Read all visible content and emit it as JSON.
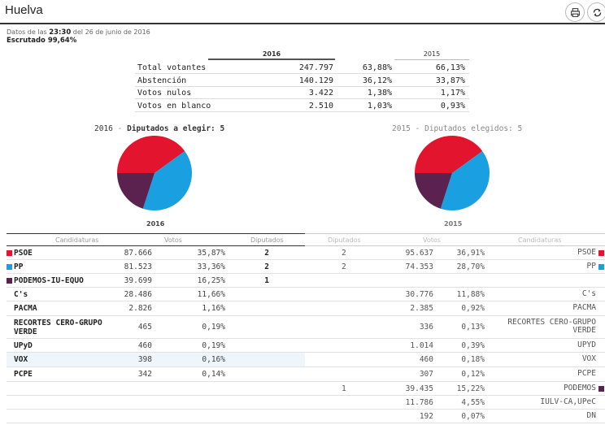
{
  "title": "Huelva",
  "icons": {
    "print": "print-icon",
    "refresh": "refresh-icon"
  },
  "meta": {
    "datos_prefix": "Datos de las",
    "time": "23:30",
    "date_text": "del 26 de junio de 2016",
    "escrutado": "Escrutado 99,64%"
  },
  "summary": {
    "year_current": "2016",
    "year_prev": "2015",
    "rows": [
      {
        "label": "Total votantes",
        "value": "247.797",
        "pct": "63,88%",
        "pct_prev": "66,13%"
      },
      {
        "label": "Abstención",
        "value": "140.129",
        "pct": "36,12%",
        "pct_prev": "33,87%"
      },
      {
        "label": "Votos nulos",
        "value": "3.422",
        "pct": "1,38%",
        "pct_prev": "1,17%"
      },
      {
        "label": "Votos en blanco",
        "value": "2.510",
        "pct": "1,03%",
        "pct_prev": "0,93%"
      }
    ]
  },
  "pies": {
    "left": {
      "year": "2016",
      "sep": "-",
      "label": "Diputados a elegir:",
      "count": "5"
    },
    "right": {
      "year": "2015",
      "sep": "-",
      "label": "Diputados elegidos:",
      "count": "5"
    }
  },
  "chart_data": [
    {
      "type": "pie",
      "title": "2016 - Diputados a elegir: 5",
      "categories": [
        "PSOE",
        "PP",
        "PODEMOS-IU-EQUO"
      ],
      "values": [
        2,
        2,
        1
      ],
      "colors": [
        "#e3142d",
        "#1aa0e0",
        "#5b2250"
      ]
    },
    {
      "type": "pie",
      "title": "2015 - Diputados elegidos: 5",
      "categories": [
        "PSOE",
        "PP",
        "PODEMOS"
      ],
      "values": [
        2,
        2,
        1
      ],
      "colors": [
        "#e3142d",
        "#1aa0e0",
        "#5b2250"
      ]
    }
  ],
  "results": {
    "headers_left": {
      "candidaturas": "Candidaturas",
      "votos": "Votos",
      "diputados": "Diputados"
    },
    "headers_right": {
      "diputados": "Diputados",
      "votos": "Votos",
      "candidaturas": "Candidaturas"
    },
    "rows": [
      {
        "left_name": "PSOE",
        "left_color": "#e3142d",
        "left_votes": "87.666",
        "left_pct": "35,87%",
        "left_seats": "2",
        "right_seats": "2",
        "right_votes": "95.637",
        "right_pct": "36,91%",
        "right_name": "PSOE",
        "right_color": "#e3142d",
        "h": 17
      },
      {
        "left_name": "PP",
        "left_color": "#1aa0e0",
        "left_votes": "81.523",
        "left_pct": "33,36%",
        "left_seats": "2",
        "right_seats": "2",
        "right_votes": "74.353",
        "right_pct": "28,70%",
        "right_name": "PP",
        "right_color": "#1aa0e0",
        "h": 17
      },
      {
        "left_name": "PODEMOS-IU-EQUO",
        "left_color": "#5b2250",
        "left_votes": "39.699",
        "left_pct": "16,25%",
        "left_seats": "1",
        "right_seats": "",
        "right_votes": "",
        "right_pct": "",
        "right_name": "",
        "right_color": "",
        "h": 17
      },
      {
        "left_name": "C's",
        "left_color": "",
        "left_votes": "28.486",
        "left_pct": "11,66%",
        "left_seats": "",
        "right_seats": "",
        "right_votes": "30.776",
        "right_pct": "11,88%",
        "right_name": "C's",
        "right_color": "",
        "h": 17
      },
      {
        "left_name": "PACMA",
        "left_color": "",
        "left_votes": "2.826",
        "left_pct": "1,16%",
        "left_seats": "",
        "right_seats": "",
        "right_votes": "2.385",
        "right_pct": "0,92%",
        "right_name": "PACMA",
        "right_color": "",
        "h": 18
      },
      {
        "left_name": "RECORTES CERO-GRUPO VERDE",
        "left_color": "",
        "left_votes": "465",
        "left_pct": "0,19%",
        "left_seats": "",
        "right_seats": "",
        "right_votes": "336",
        "right_pct": "0,13%",
        "right_name": "RECORTES CERO-GRUPO VERDE",
        "right_color": "",
        "h": 28
      },
      {
        "left_name": "UPyD",
        "left_color": "",
        "left_votes": "460",
        "left_pct": "0,19%",
        "left_seats": "",
        "right_seats": "",
        "right_votes": "1.014",
        "right_pct": "0,39%",
        "right_name": "UPYD",
        "right_color": "",
        "h": 17
      },
      {
        "left_name": "VOX",
        "left_color": "",
        "left_votes": "398",
        "left_pct": "0,16%",
        "left_seats": "",
        "right_seats": "",
        "right_votes": "460",
        "right_pct": "0,18%",
        "right_name": "VOX",
        "right_color": "",
        "h": 18,
        "highlight": true
      },
      {
        "left_name": "PCPE",
        "left_color": "",
        "left_votes": "342",
        "left_pct": "0,14%",
        "left_seats": "",
        "right_seats": "",
        "right_votes": "307",
        "right_pct": "0,12%",
        "right_name": "PCPE",
        "right_color": "",
        "h": 18
      },
      {
        "left_name": "",
        "left_color": "",
        "left_votes": "",
        "left_pct": "",
        "left_seats": "",
        "right_seats": "1",
        "right_votes": "39.435",
        "right_pct": "15,22%",
        "right_name": "PODEMOS",
        "right_color": "#5b2250",
        "h": 17
      },
      {
        "left_name": "",
        "left_color": "",
        "left_votes": "",
        "left_pct": "",
        "left_seats": "",
        "right_seats": "",
        "right_votes": "11.786",
        "right_pct": "4,55%",
        "right_name": "IULV-CA,UPeC",
        "right_color": "",
        "h": 17
      },
      {
        "left_name": "",
        "left_color": "",
        "left_votes": "",
        "left_pct": "",
        "left_seats": "",
        "right_seats": "",
        "right_votes": "192",
        "right_pct": "0,07%",
        "right_name": "DN",
        "right_color": "",
        "h": 17
      }
    ]
  }
}
